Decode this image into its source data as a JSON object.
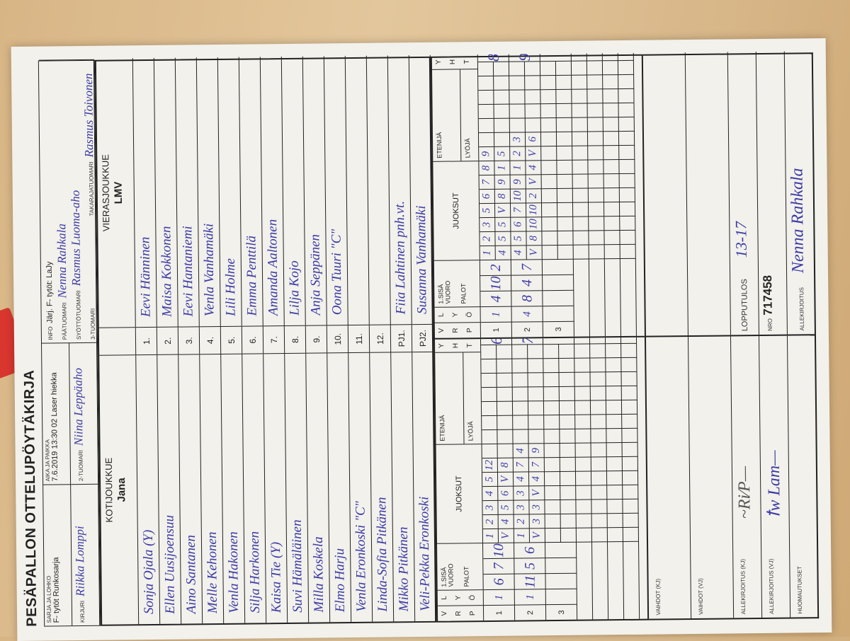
{
  "title": "PESÄPALLON OTTELUPÖYTÄKIRJA",
  "header": {
    "sarja_label": "SARJA JA LOHKO",
    "sarja_value": "F- tytöt Runkosarja",
    "aika_label": "AIKA JA PAIKKA",
    "aika_value": "7.6.2019 13:30 02 Laser hiekka",
    "kirjuri_label": "KIRJURI",
    "kirjuri_value": "Riikka Lomppi",
    "tuomari2_label": "2-TUOMARI",
    "tuomari2_value": "Niina Leppäaho",
    "info_label": "INFO",
    "info_value": "Järj. F- tytöt: LaJy",
    "paatuomari_label": "PÄÄTUOMARI",
    "paatuomari_value": "Nenna Rahkala",
    "syottotuomari_label": "SYÖTTÖTUOMARI",
    "syottotuomari_value": "Rasmus Luoma-aho",
    "tuomari3_label": "3-TUOMARI",
    "tuomari3_value": "",
    "takaraja_label": "TAKARAJATUOMARI",
    "takaraja_value": "Rasmus Toivonen"
  },
  "home": {
    "label": "KOTIJOUKKUE",
    "team": "Jana",
    "players": [
      "Sonja Ojala (Y)",
      "Ellen Uusijoensuu",
      "Aino Santanen",
      "Melle Kehonen",
      "Venla Hakonen",
      "Silja Harkonen",
      "Kaisa Tie (Y)",
      "Suvi Hämäläinen",
      "Milla Koskela",
      "Elmo Harju",
      "Venla Eronkoski \"C\"",
      "Linda-Sofia Pitkänen",
      "Mikko Pitkänen",
      "Veli-Pekka Eronkoski"
    ]
  },
  "away": {
    "label": "VIERASJOUKKUE",
    "team": "LMV",
    "players": [
      "Eevi Hänninen",
      "Maisa Kokkonen",
      "Eevi Hantaniemi",
      "Venla Vanhamäki",
      "Lili Holme",
      "Emma Penttilä",
      "Amanda Aaltonen",
      "Lilja Kojo",
      "Anja Seppänen",
      "Oona Tuuri \"C\"",
      "",
      "",
      "Fiia Lahtinen pnh.vt.",
      "Susanna Vanhamäki"
    ]
  },
  "numbers": [
    "1.",
    "2.",
    "3.",
    "4.",
    "5.",
    "6.",
    "7.",
    "8.",
    "9.",
    "10.",
    "11.",
    "12.",
    "PJ1.",
    "PJ2."
  ],
  "score_header": {
    "vrp": [
      "V",
      "R",
      "P"
    ],
    "lyo": [
      "L",
      "Y",
      "Ö"
    ],
    "sisa": "1.SISÄ VUORO",
    "palot": "PALOT",
    "juoksut": "JUOKSUT",
    "etenija": "ETENIJÄ",
    "lyoja": "LYÖJÄ",
    "yht": [
      "Y",
      "H",
      "T"
    ]
  },
  "home_periods": [
    {
      "period": "1",
      "lyo": "1",
      "palot": [
        "6",
        "7",
        "10"
      ],
      "top": [
        "1",
        "2",
        "3",
        "4",
        "5",
        "12"
      ],
      "bottom": [
        "V",
        "4",
        "5",
        "6",
        "V",
        "8"
      ],
      "yht": "6"
    },
    {
      "period": "2",
      "lyo": "1",
      "palot": [
        "11",
        "5",
        "6"
      ],
      "top": [
        "1",
        "2",
        "3",
        "3",
        "4",
        "7",
        "4"
      ],
      "bottom": [
        "V",
        "3",
        "3",
        "V",
        "4",
        "7",
        "9"
      ],
      "yht": "7"
    },
    {
      "period": "3",
      "lyo": "",
      "palot": [
        "",
        "",
        ""
      ],
      "top": [],
      "bottom": [],
      "yht": ""
    }
  ],
  "away_periods": [
    {
      "period": "1",
      "lyo": "1",
      "palot": [
        "4",
        "10",
        "2"
      ],
      "top": [
        "1",
        "2",
        "3",
        "5",
        "6",
        "7",
        "8",
        "9"
      ],
      "bottom": [
        "4",
        "5",
        "5",
        "V",
        "8",
        "9",
        "1",
        "5"
      ],
      "yht": "8"
    },
    {
      "period": "2",
      "lyo": "4",
      "palot": [
        "8",
        "4",
        "7"
      ],
      "top": [
        "4",
        "5",
        "6",
        "7",
        "10",
        "9",
        "1",
        "2",
        "3"
      ],
      "bottom": [
        "V",
        "8",
        "10",
        "10",
        "2",
        "V",
        "4",
        "V",
        "6"
      ],
      "yht": "9"
    },
    {
      "period": "3",
      "lyo": "",
      "palot": [
        "",
        "",
        ""
      ],
      "top": [],
      "bottom": [],
      "yht": ""
    }
  ],
  "footer": {
    "vaihdot_kj": "VAIHDOT (KJ)",
    "vaihdot_vj": "VAIHDOT (VJ)",
    "allekirjoitus_kj": "ALLEKIRJOITUS (KJ)",
    "allekirjoitus_vj": "ALLEKIRJOITUS (VJ)",
    "huomautukset": "HUOMAUTUKSET",
    "lopputulos_label": "LOPPUTULOS",
    "lopputulos_value": "13-17",
    "nro_label": "NRO",
    "nro_value": "717458",
    "allekirjoitus_label": "ALLEKIRJOITUS",
    "allekirjoitus_value": "Nenna Rahkala"
  },
  "colors": {
    "ink": "#3b3aa3",
    "paper": "#f2f1ec"
  }
}
